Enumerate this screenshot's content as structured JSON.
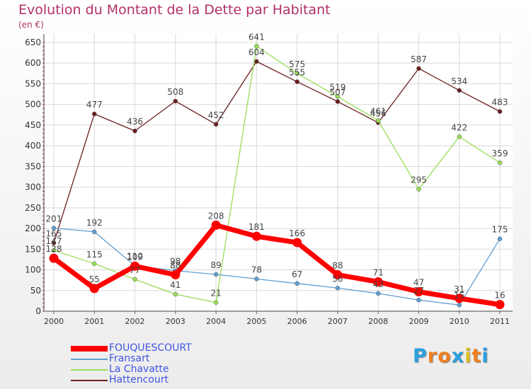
{
  "colors": {
    "title": "#b0306a",
    "legend_text": "#3f55e0",
    "grid": "#d8d8d8"
  },
  "chart_data": {
    "type": "line",
    "title": "Evolution du Montant de la Dette par Habitant",
    "subtitle": "(en €)",
    "xlabel": "",
    "ylabel": "",
    "x": [
      "2000",
      "2001",
      "2002",
      "2003",
      "2004",
      "2005",
      "2006",
      "2007",
      "2008",
      "2009",
      "2010",
      "2011"
    ],
    "ylim": [
      0,
      650
    ],
    "yticks": [
      0,
      50,
      100,
      150,
      200,
      250,
      300,
      350,
      400,
      450,
      500,
      550,
      600,
      650
    ],
    "grid": true,
    "legend_position": "bottom-left",
    "series": [
      {
        "name": "FOUQUESCOURT",
        "color": "#ff0000",
        "values": [
          128,
          55,
          109,
          88,
          208,
          181,
          166,
          88,
          71,
          47,
          31,
          16
        ]
      },
      {
        "name": "Fransart",
        "color": "#5f9ed1",
        "values": [
          201,
          192,
          110,
          98,
          89,
          78,
          67,
          56,
          43,
          27,
          15,
          175
        ]
      },
      {
        "name": "La Chavatte",
        "color": "#99dd55",
        "values": [
          147,
          115,
          77,
          41,
          21,
          641,
          575,
          519,
          461,
          295,
          422,
          359
        ]
      },
      {
        "name": "Hattencourt",
        "color": "#6b1f1f",
        "values": [
          165,
          477,
          436,
          508,
          452,
          604,
          555,
          507,
          456,
          587,
          534,
          483
        ]
      }
    ]
  },
  "logo": {
    "letters": [
      "P",
      "r",
      "o",
      "x",
      "i",
      "t",
      "i"
    ],
    "colors": [
      "#2aa0e0",
      "#f08020",
      "#f08020",
      "#2aa0e0",
      "#e0c020",
      "#f08020",
      "#2aa0e0"
    ]
  }
}
